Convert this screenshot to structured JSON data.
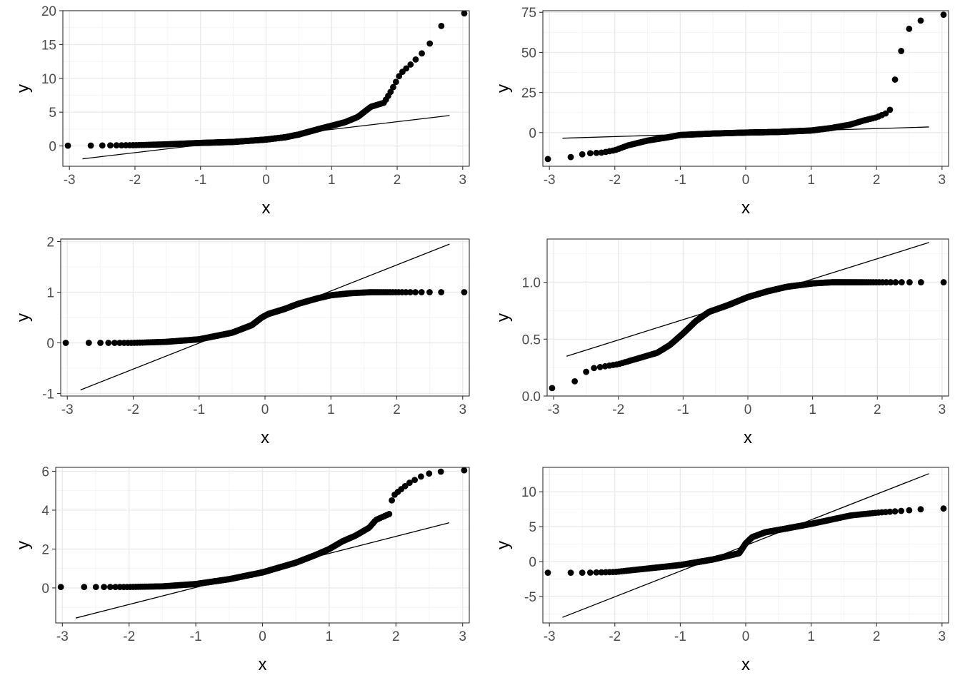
{
  "colors": {
    "points": "#000000",
    "line": "#000000",
    "grid": "#ebebeb",
    "panel_border": "#333333",
    "tick_text": "#4d4d4d"
  },
  "chart_data": [
    {
      "type": "scatter",
      "title": "",
      "xlabel": "x",
      "ylabel": "y",
      "xlim": [
        -3.1,
        3.1
      ],
      "ylim": [
        -3,
        20
      ],
      "xticks": [
        -3,
        -2,
        -1,
        0,
        1,
        2,
        3
      ],
      "yticks": [
        0,
        5,
        10,
        15,
        20
      ],
      "grid": true,
      "reference_line": [
        [
          -2.8,
          -1.9
        ],
        [
          2.8,
          4.5
        ]
      ],
      "quantile_knots": [
        [
          -2.8,
          0.05
        ],
        [
          -2.44,
          0.08
        ],
        [
          -2.0,
          0.12
        ],
        [
          -1.5,
          0.25
        ],
        [
          -1.0,
          0.45
        ],
        [
          -0.5,
          0.6
        ],
        [
          0.0,
          0.95
        ],
        [
          0.3,
          1.3
        ],
        [
          0.5,
          1.7
        ],
        [
          0.8,
          2.5
        ],
        [
          1.0,
          3.0
        ],
        [
          1.2,
          3.5
        ],
        [
          1.4,
          4.3
        ],
        [
          1.6,
          5.8
        ],
        [
          1.8,
          6.4
        ],
        [
          1.9,
          8.0
        ],
        [
          2.05,
          10.7
        ],
        [
          2.2,
          12.0
        ],
        [
          2.44,
          14.3
        ],
        [
          2.8,
          19.6
        ]
      ]
    },
    {
      "type": "scatter",
      "title": "",
      "xlabel": "x",
      "ylabel": "y",
      "xlim": [
        -3.1,
        3.1
      ],
      "ylim": [
        -21,
        76
      ],
      "xticks": [
        -3,
        -2,
        -1,
        0,
        1,
        2,
        3
      ],
      "yticks": [
        0,
        25,
        50,
        75
      ],
      "grid": true,
      "reference_line": [
        [
          -2.8,
          -3.5
        ],
        [
          2.8,
          3.5
        ]
      ],
      "quantile_knots": [
        [
          -2.8,
          -16.5
        ],
        [
          -2.44,
          -13
        ],
        [
          -2.2,
          -12.5
        ],
        [
          -2.0,
          -11.0
        ],
        [
          -1.8,
          -8.0
        ],
        [
          -1.5,
          -5.0
        ],
        [
          -1.2,
          -3.0
        ],
        [
          -1.0,
          -1.5
        ],
        [
          -0.5,
          -0.6
        ],
        [
          0.0,
          0.0
        ],
        [
          0.5,
          0.4
        ],
        [
          1.0,
          1.3
        ],
        [
          1.3,
          2.8
        ],
        [
          1.6,
          5.0
        ],
        [
          1.8,
          7.5
        ],
        [
          2.0,
          9.5
        ],
        [
          2.2,
          13.0
        ],
        [
          2.25,
          27
        ],
        [
          2.44,
          63
        ],
        [
          2.8,
          73.5
        ]
      ]
    },
    {
      "type": "scatter",
      "title": "",
      "xlabel": "x",
      "ylabel": "y",
      "xlim": [
        -3.1,
        3.1
      ],
      "ylim": [
        -1.05,
        2.05
      ],
      "xticks": [
        -3,
        -2,
        -1,
        0,
        1,
        2,
        3
      ],
      "yticks": [
        -1,
        0,
        1,
        2
      ],
      "grid": true,
      "reference_line": [
        [
          -2.8,
          -0.93
        ],
        [
          2.8,
          1.95
        ]
      ],
      "quantile_knots": [
        [
          -2.8,
          0.0
        ],
        [
          -2.44,
          0.0
        ],
        [
          -2.0,
          0.0
        ],
        [
          -1.5,
          0.02
        ],
        [
          -1.0,
          0.07
        ],
        [
          -0.5,
          0.2
        ],
        [
          -0.2,
          0.35
        ],
        [
          -0.05,
          0.5
        ],
        [
          0.05,
          0.57
        ],
        [
          0.3,
          0.67
        ],
        [
          0.5,
          0.77
        ],
        [
          0.8,
          0.88
        ],
        [
          1.0,
          0.94
        ],
        [
          1.3,
          0.98
        ],
        [
          1.6,
          1.0
        ],
        [
          2.0,
          1.0
        ],
        [
          2.44,
          1.0
        ],
        [
          2.8,
          1.0
        ]
      ]
    },
    {
      "type": "scatter",
      "title": "",
      "xlabel": "x",
      "ylabel": "y",
      "xlim": [
        -3.1,
        3.1
      ],
      "ylim": [
        0,
        1.38
      ],
      "xticks": [
        -3,
        -2,
        -1,
        0,
        1,
        2,
        3
      ],
      "yticks": [
        0.0,
        0.5,
        1.0
      ],
      "ytick_labels": [
        "0.0",
        "0.5",
        "1.0"
      ],
      "grid": true,
      "reference_line": [
        [
          -2.8,
          0.35
        ],
        [
          2.8,
          1.35
        ]
      ],
      "quantile_knots": [
        [
          -2.8,
          0.07
        ],
        [
          -2.44,
          0.24
        ],
        [
          -2.0,
          0.28
        ],
        [
          -1.7,
          0.33
        ],
        [
          -1.4,
          0.38
        ],
        [
          -1.2,
          0.45
        ],
        [
          -1.0,
          0.55
        ],
        [
          -0.8,
          0.66
        ],
        [
          -0.6,
          0.74
        ],
        [
          -0.3,
          0.8
        ],
        [
          0.0,
          0.87
        ],
        [
          0.3,
          0.92
        ],
        [
          0.6,
          0.96
        ],
        [
          1.0,
          0.99
        ],
        [
          1.3,
          1.0
        ],
        [
          2.0,
          1.0
        ],
        [
          2.44,
          1.0
        ],
        [
          2.8,
          1.0
        ]
      ]
    },
    {
      "type": "scatter",
      "title": "",
      "xlabel": "x",
      "ylabel": "y",
      "xlim": [
        -3.1,
        3.1
      ],
      "ylim": [
        -1.8,
        6.2
      ],
      "xticks": [
        -3,
        -2,
        -1,
        0,
        1,
        2,
        3
      ],
      "yticks": [
        0,
        2,
        4,
        6
      ],
      "grid": true,
      "reference_line": [
        [
          -2.8,
          -1.55
        ],
        [
          2.8,
          3.35
        ]
      ],
      "quantile_knots": [
        [
          -2.8,
          0.05
        ],
        [
          -2.44,
          0.05
        ],
        [
          -2.0,
          0.05
        ],
        [
          -1.5,
          0.08
        ],
        [
          -1.0,
          0.2
        ],
        [
          -0.5,
          0.45
        ],
        [
          0.0,
          0.8
        ],
        [
          0.5,
          1.3
        ],
        [
          0.8,
          1.7
        ],
        [
          1.0,
          2.0
        ],
        [
          1.2,
          2.4
        ],
        [
          1.4,
          2.7
        ],
        [
          1.6,
          3.1
        ],
        [
          1.7,
          3.5
        ],
        [
          1.9,
          3.8
        ],
        [
          1.95,
          4.7
        ],
        [
          2.05,
          5.0
        ],
        [
          2.2,
          5.4
        ],
        [
          2.44,
          5.85
        ],
        [
          2.8,
          6.05
        ]
      ]
    },
    {
      "type": "scatter",
      "title": "",
      "xlabel": "x",
      "ylabel": "y",
      "xlim": [
        -3.1,
        3.1
      ],
      "ylim": [
        -8.8,
        13.5
      ],
      "xticks": [
        -3,
        -2,
        -1,
        0,
        1,
        2,
        3
      ],
      "yticks": [
        -5,
        0,
        5,
        10
      ],
      "grid": true,
      "reference_line": [
        [
          -2.8,
          -8.0
        ],
        [
          2.8,
          12.6
        ]
      ],
      "quantile_knots": [
        [
          -2.8,
          -1.6
        ],
        [
          -2.44,
          -1.6
        ],
        [
          -2.0,
          -1.5
        ],
        [
          -1.5,
          -1.0
        ],
        [
          -1.0,
          -0.5
        ],
        [
          -0.5,
          0.3
        ],
        [
          -0.1,
          1.2
        ],
        [
          0.0,
          2.6
        ],
        [
          0.1,
          3.5
        ],
        [
          0.3,
          4.2
        ],
        [
          0.6,
          4.7
        ],
        [
          1.0,
          5.4
        ],
        [
          1.3,
          6.0
        ],
        [
          1.6,
          6.6
        ],
        [
          2.0,
          7.0
        ],
        [
          2.44,
          7.3
        ],
        [
          2.8,
          7.6
        ]
      ]
    }
  ]
}
